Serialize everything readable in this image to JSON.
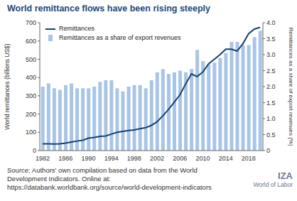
{
  "chart_data": {
    "type": "bar",
    "title": "World remittance flows have been rising steeply",
    "categories": [
      "1982",
      null,
      null,
      null,
      "1986",
      null,
      null,
      null,
      "1990",
      null,
      null,
      null,
      "1994",
      null,
      null,
      null,
      "1998",
      null,
      null,
      null,
      "2002",
      null,
      null,
      null,
      "2006",
      null,
      null,
      null,
      "2010",
      null,
      null,
      null,
      "2014",
      null,
      null,
      null,
      "2018",
      null,
      null
    ],
    "series": [
      {
        "name": "Remittances as a share of export revenues",
        "type": "bar",
        "axis": "y2",
        "color": "#a9c5e6",
        "values": [
          2.0,
          2.1,
          1.95,
          1.9,
          2.05,
          2.1,
          1.95,
          1.95,
          1.95,
          2.0,
          2.15,
          2.2,
          2.2,
          1.95,
          1.85,
          2.0,
          2.05,
          2.05,
          1.95,
          2.2,
          2.45,
          2.55,
          2.4,
          2.45,
          2.5,
          2.45,
          2.55,
          3.15,
          2.8,
          2.7,
          2.75,
          2.9,
          3.05,
          3.4,
          3.4,
          3.3,
          3.3,
          3.55,
          3.75
        ]
      },
      {
        "name": "Remittances",
        "type": "line",
        "color": "#15406e",
        "values": [
          37,
          37,
          36,
          37,
          41,
          47,
          52,
          56,
          68,
          72,
          78,
          80,
          90,
          100,
          105,
          110,
          113,
          120,
          125,
          138,
          158,
          190,
          225,
          265,
          305,
          365,
          420,
          405,
          430,
          475,
          500,
          525,
          555,
          555,
          545,
          585,
          640,
          665,
          675
        ]
      }
    ],
    "y_label": "World remittances (billions US$)",
    "y2_label": "Remittances as a share of export revenues (%)",
    "ylim": [
      0,
      700
    ],
    "yticks": [
      0,
      100,
      200,
      300,
      400,
      500,
      600,
      700
    ],
    "y2lim": [
      0,
      4
    ],
    "y2ticks": [
      0,
      0.5,
      {
        "value": 1,
        "label": "1.0"
      },
      1.5,
      {
        "value": 2,
        "label": "2.0"
      },
      2.5,
      {
        "value": 3,
        "label": "3.0"
      },
      3.5,
      {
        "value": 4,
        "label": "4.0"
      }
    ],
    "grid": false,
    "legend": "top-left",
    "annotations": [
      "Source: Authors' own compilation based on data from the World Development Indicators. Online at: https://databank.worldbank.org/source/world-development-indicators",
      "IZA",
      "World of Labor"
    ]
  }
}
